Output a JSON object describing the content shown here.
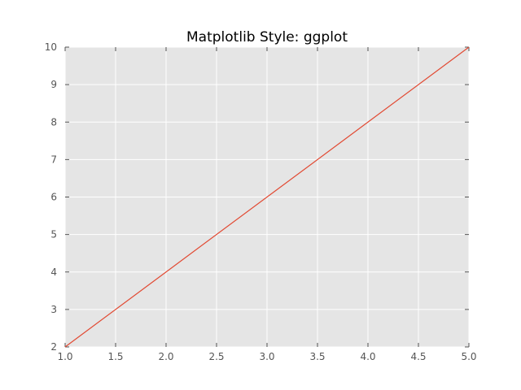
{
  "chart_data": {
    "type": "line",
    "title": "Matplotlib Style: ggplot",
    "xlabel": "",
    "ylabel": "",
    "xlim": [
      1.0,
      5.0
    ],
    "ylim": [
      2,
      10
    ],
    "x_ticks": [
      "1.0",
      "1.5",
      "2.0",
      "2.5",
      "3.0",
      "3.5",
      "4.0",
      "4.5",
      "5.0"
    ],
    "y_ticks": [
      "2",
      "3",
      "4",
      "5",
      "6",
      "7",
      "8",
      "9",
      "10"
    ],
    "grid": true,
    "legend": "none",
    "background_color": "#e5e5e5",
    "grid_color": "#ffffff",
    "series": [
      {
        "color": "#e24a33",
        "x": [
          1,
          2,
          3,
          4,
          5
        ],
        "y": [
          2,
          4,
          6,
          8,
          10
        ]
      }
    ]
  }
}
